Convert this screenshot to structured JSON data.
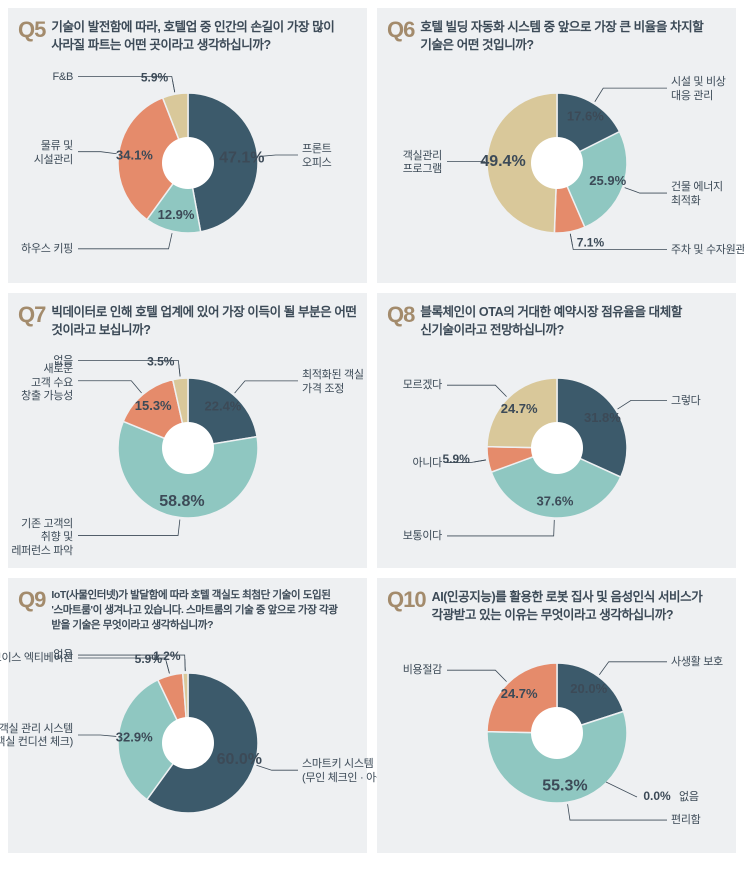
{
  "bg_card": "#eef0f2",
  "q_color": "#a38b6c",
  "text_color": "#3c4a57",
  "pie_inner_color": "#ffffff",
  "cards": [
    {
      "num": "Q5",
      "title": "기술이 발전함에 따라, 호텔업 중 인간의 손길이 가장 많이 사라질 파트는 어떤 곳이라고 생각하십니까?",
      "donut": true,
      "slices": [
        {
          "value": 47.1,
          "color": "#3c5a6b",
          "pct": "47.1%",
          "label": "프론트\n오피스",
          "pct_big": true
        },
        {
          "value": 12.9,
          "color": "#8fc7c1",
          "pct": "12.9%",
          "label": "하우스 키핑"
        },
        {
          "value": 34.1,
          "color": "#e58b6b",
          "pct": "34.1%",
          "label": "물류 및\n시설관리"
        },
        {
          "value": 5.9,
          "color": "#d9c89a",
          "pct": "5.9%",
          "label": "F&B",
          "pct_out": true
        }
      ]
    },
    {
      "num": "Q6",
      "title": "호텔 빌딩 자동화 시스템 중 앞으로 가장 큰 비율을 차지할 기술은 어떤 것입니까?",
      "donut": true,
      "slices": [
        {
          "value": 17.6,
          "color": "#3c5a6b",
          "pct": "17.6%",
          "label": "시설 및 비상\n대응 관리"
        },
        {
          "value": 25.9,
          "color": "#8fc7c1",
          "pct": "25.9%",
          "label": "건물 에너지\n최적화"
        },
        {
          "value": 7.1,
          "color": "#e58b6b",
          "pct": "7.1%",
          "label": "주차 및 수자원관리",
          "pct_out": true
        },
        {
          "value": 49.4,
          "color": "#d9c89a",
          "pct": "49.4%",
          "label": "객실관리\n프로그램",
          "pct_big": true
        }
      ]
    },
    {
      "num": "Q7",
      "title": "빅데이터로 인해 호텔 업계에 있어 가장 이득이 될 부분은 어떤 것이라고 보십니까?",
      "donut": true,
      "slices": [
        {
          "value": 22.4,
          "color": "#3c5a6b",
          "pct": "22.4%",
          "label": "최적화된 객실\n가격 조정"
        },
        {
          "value": 58.8,
          "color": "#8fc7c1",
          "pct": "58.8%",
          "label": "기존 고객의\n취향 및\n레퍼런스 파악",
          "pct_big": true
        },
        {
          "value": 15.3,
          "color": "#e58b6b",
          "pct": "15.3%",
          "label": "새로운\n고객 수요\n창출 가능성"
        },
        {
          "value": 3.5,
          "color": "#d9c89a",
          "pct": "3.5%",
          "label": "없음",
          "pct_out": true
        }
      ]
    },
    {
      "num": "Q8",
      "title": "블록체인이 OTA의 거대한 예약시장 점유율을 대체할 신기술이라고 전망하십니까?",
      "donut": true,
      "slices": [
        {
          "value": 31.8,
          "color": "#3c5a6b",
          "pct": "31.8%",
          "label": "그렇다"
        },
        {
          "value": 37.6,
          "color": "#8fc7c1",
          "pct": "37.6%",
          "label": "보통이다"
        },
        {
          "value": 5.9,
          "color": "#e58b6b",
          "pct": "5.9%",
          "label": "아니다",
          "pct_out": true
        },
        {
          "value": 24.7,
          "color": "#d9c89a",
          "pct": "24.7%",
          "label": "모르겠다"
        }
      ]
    },
    {
      "num": "Q9",
      "title": "IoT(사물인터넷)가 발달함에 따라 호텔 객실도 최첨단 기술이 도입된 '스마트룸'이 생겨나고 있습니다. 스마트룸의 기술 중 앞으로 가장 각광 받을 기술은 무엇이라고 생각하십니까?",
      "title_small": true,
      "donut": true,
      "slices": [
        {
          "value": 60.0,
          "color": "#3c5a6b",
          "pct": "60.0%",
          "label": "스마트키 시스템\n(무인 체크인 · 아웃)",
          "pct_big": true
        },
        {
          "value": 32.9,
          "color": "#8fc7c1",
          "pct": "32.9%",
          "label": "객실 관리 시스템\n(객실 컨디션 체크)"
        },
        {
          "value": 5.9,
          "color": "#e58b6b",
          "pct": "5.9%",
          "label": "보이스 엑티베이션",
          "pct_out": true
        },
        {
          "value": 1.2,
          "color": "#d9c89a",
          "pct": "1.2%",
          "label": "없음",
          "pct_out": true
        }
      ]
    },
    {
      "num": "Q10",
      "title": "AI(인공지능)를 활용한 로봇 집사 및 음성인식 서비스가 각광받고 있는 이유는 무엇이라고 생각하십니까?",
      "donut": true,
      "slices": [
        {
          "value": 20.0,
          "color": "#3c5a6b",
          "pct": "20.0%",
          "label": "사생활 보호"
        },
        {
          "value": 55.3,
          "color": "#8fc7c1",
          "pct": "55.3%",
          "label": "편리함",
          "pct_big": true
        },
        {
          "value": 0.0,
          "color": "#d9c89a",
          "pct": "0.0%",
          "label": "없음",
          "zero": true
        },
        {
          "value": 24.7,
          "color": "#e58b6b",
          "pct": "24.7%",
          "label": "비용절감"
        }
      ]
    }
  ]
}
